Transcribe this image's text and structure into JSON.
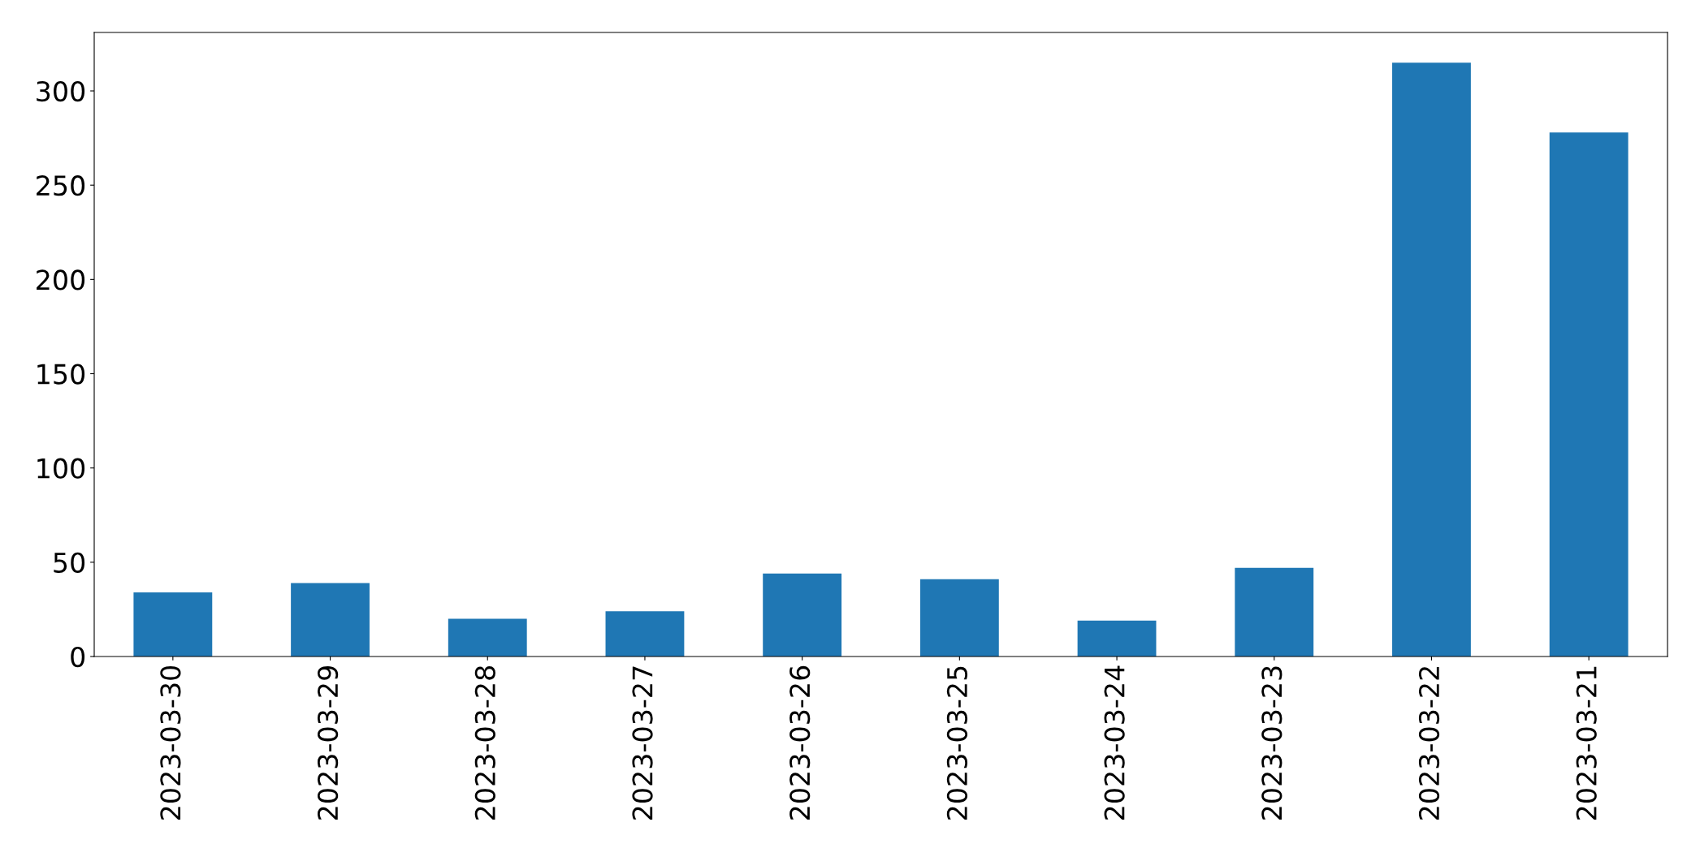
{
  "chart_data": {
    "type": "bar",
    "categories": [
      "2023-03-30",
      "2023-03-29",
      "2023-03-28",
      "2023-03-27",
      "2023-03-26",
      "2023-03-25",
      "2023-03-24",
      "2023-03-23",
      "2023-03-22",
      "2023-03-21"
    ],
    "values": [
      34,
      39,
      20,
      24,
      44,
      41,
      19,
      47,
      315,
      278
    ],
    "color": "#1f77b4",
    "ylim": [
      0,
      331
    ],
    "yticks": [
      0,
      50,
      100,
      150,
      200,
      250,
      300
    ],
    "grid": false
  }
}
